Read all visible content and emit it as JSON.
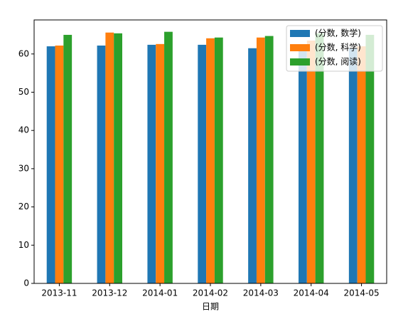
{
  "chart_data": {
    "type": "bar",
    "x_label": "日期",
    "categories": [
      "2013-11",
      "2013-12",
      "2014-01",
      "2014-02",
      "2014-03",
      "2014-04",
      "2014-05"
    ],
    "series": [
      {
        "name": "(分数, 数学)",
        "color": "#1f77b4",
        "values": [
          62.0,
          62.2,
          62.4,
          62.4,
          61.5,
          62.0,
          61.5
        ]
      },
      {
        "name": "(分数, 科学)",
        "color": "#ff7f0e",
        "values": [
          62.2,
          65.6,
          62.6,
          64.1,
          64.3,
          63.5,
          62.0
        ]
      },
      {
        "name": "(分数, 阅读)",
        "color": "#2ca02c",
        "values": [
          65.0,
          65.4,
          65.8,
          64.3,
          64.7,
          65.4,
          65.0
        ]
      }
    ],
    "ylim": [
      0,
      68.9
    ],
    "yticks": [
      0,
      10,
      20,
      30,
      40,
      50,
      60
    ],
    "legend": "upper right"
  }
}
